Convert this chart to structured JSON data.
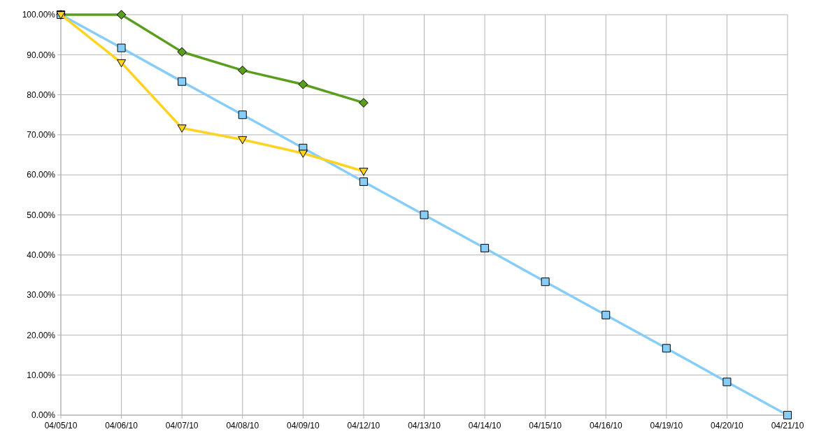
{
  "chart_data": {
    "type": "line",
    "categories": [
      "04/05/10",
      "04/06/10",
      "04/07/10",
      "04/08/10",
      "04/09/10",
      "04/12/10",
      "04/13/10",
      "04/14/10",
      "04/15/10",
      "04/16/10",
      "04/19/10",
      "04/20/10",
      "04/21/10"
    ],
    "series": [
      {
        "color": "#5a9e1e",
        "marker": "diamond",
        "values": [
          100,
          100,
          90.7,
          86.1,
          82.6,
          78.0,
          null,
          null,
          null,
          null,
          null,
          null,
          null
        ]
      },
      {
        "color": "#87cdfa",
        "marker": "square",
        "values": [
          100,
          91.7,
          83.3,
          75,
          66.7,
          58.3,
          50,
          41.7,
          33.3,
          25,
          16.7,
          8.3,
          0
        ]
      },
      {
        "color": "#ffd320",
        "marker": "triangle",
        "values": [
          100,
          88.0,
          71.7,
          68.8,
          65.4,
          60.9,
          null,
          null,
          null,
          null,
          null,
          null,
          null
        ]
      }
    ],
    "ylim": [
      0,
      100
    ],
    "yticks": [
      {
        "value": 0,
        "label": "0.00%"
      },
      {
        "value": 10,
        "label": "10.00%"
      },
      {
        "value": 20,
        "label": "20.00%"
      },
      {
        "value": 30,
        "label": "30.00%"
      },
      {
        "value": 40,
        "label": "40.00%"
      },
      {
        "value": 50,
        "label": "50.00%"
      },
      {
        "value": 60,
        "label": "60.00%"
      },
      {
        "value": 70,
        "label": "70.00%"
      },
      {
        "value": 80,
        "label": "80.00%"
      },
      {
        "value": 90,
        "label": "90.00%"
      },
      {
        "value": 100,
        "label": "100.00%"
      }
    ],
    "grid": true,
    "line_style": "solid"
  }
}
